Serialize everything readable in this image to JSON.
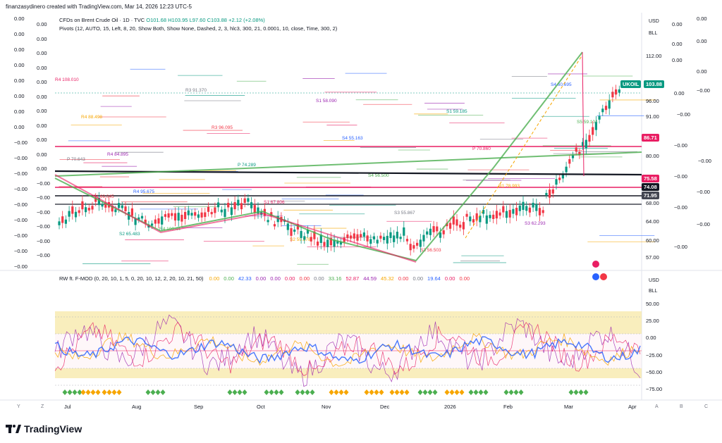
{
  "header": {
    "text": "finanzasydinero created with TradingView.com, Mar 14, 2026 12:23 UTC-5"
  },
  "symbol_info": {
    "title": "CFDs on Brent Crude Oil · 1D · TVC",
    "open": "O101.68",
    "high": "H103.95",
    "low": "L97.60",
    "close": "C103.88",
    "change": "+2.12 (+2.08%)"
  },
  "indicator_info": "Pivots (12, AUTO, 15, Left, 8, 20, Show Both, Show None, Dashed, 2, 3, hlc3, 300, 21, 0.0001, 10, close, Time, 300, 2)",
  "oscillator": {
    "title": "RW ft. F-MOD (0, 20, 10, 1, 5, 0, 20, 10, 12, 2, 20, 10, 21, 50)",
    "values": [
      {
        "v": "0.00",
        "c": "#f7a600"
      },
      {
        "v": "0.00",
        "c": "#4caf50"
      },
      {
        "v": "42.33",
        "c": "#2962ff"
      },
      {
        "v": "0.00",
        "c": "#9c27b0"
      },
      {
        "v": "0.00",
        "c": "#9c27b0"
      },
      {
        "v": "0.00",
        "c": "#e91e63"
      },
      {
        "v": "0.00",
        "c": "#f23645"
      },
      {
        "v": "0.00",
        "c": "#787b86"
      },
      {
        "v": "33.16",
        "c": "#4caf50"
      },
      {
        "v": "52.87",
        "c": "#e91e63"
      },
      {
        "v": "44.59",
        "c": "#9c27b0"
      },
      {
        "v": "45.32",
        "c": "#f7a600"
      },
      {
        "v": "0.00",
        "c": "#f23645"
      },
      {
        "v": "0.00",
        "c": "#787b86"
      },
      {
        "v": "19.64",
        "c": "#2962ff"
      },
      {
        "v": "0.00",
        "c": "#e91e63"
      },
      {
        "v": "0.00",
        "c": "#f23645"
      }
    ]
  },
  "left_scale": [
    "0.00",
    "0.00",
    "0.00",
    "0.00",
    "0.00",
    "0.00",
    "0.00",
    "0.00",
    "−0.00",
    "−0.00",
    "−0.00",
    "−0.00",
    "−0.00",
    "−0.00",
    "−0.00",
    "−0.00",
    "−0.00"
  ],
  "left_scale2": [
    "0.00",
    "0.00",
    "0.00",
    "0.00",
    "0.00",
    "0.00",
    "0.00",
    "0.00",
    "0.00",
    "0.00",
    "0.00",
    "−0.00",
    "−0.00",
    "−0.00",
    "−0.00",
    "−0.00",
    "−0.00"
  ],
  "right_scale": {
    "currency": "USD",
    "unit": "BLL",
    "ticks": [
      "112.00",
      "96.00",
      "91.00",
      "80.00",
      "68.00",
      "64.00",
      "60.00",
      "57.00"
    ],
    "right_extra": [
      "0.00",
      "0.00",
      "0.00",
      "0.00",
      "0.00",
      "0.00",
      "0.00",
      "−0.00",
      "−0.00",
      "−0.00",
      "−0.00",
      "−0.00",
      "−0.00",
      "−0.00",
      "−0.00",
      "−0.00"
    ]
  },
  "price_tags": [
    {
      "label": "UKOIL",
      "value": "103.88",
      "color": "#089981"
    },
    {
      "value": "86.71",
      "color": "#e91e63"
    },
    {
      "value": "75.58",
      "color": "#e91e63"
    },
    {
      "value": "74.08",
      "color": "#131722"
    },
    {
      "value": "71.95",
      "color": "#434651"
    }
  ],
  "osc_scale": {
    "currency": "USD",
    "unit": "BLL",
    "ticks": [
      "50.00",
      "25.00",
      "0.00",
      "−25.00",
      "−50.00",
      "−75.00"
    ]
  },
  "x_axis": [
    "Jul",
    "Aug",
    "Sep",
    "Oct",
    "Nov",
    "Dec",
    "2026",
    "Feb",
    "Mar",
    "Apr"
  ],
  "corner_left": [
    "Y",
    "Z"
  ],
  "corner_right": [
    "A",
    "B",
    "C"
  ],
  "pivot_labels": [
    "R4 108.010",
    "R4 88.498",
    "R4 84.895",
    "R4 95.675",
    "R4 100.44",
    "R3 91.370",
    "R3 96.095",
    "P 74.289",
    "S1 67.806",
    "S2 59.878",
    "S1 58.090",
    "S4 55.163",
    "S4 56.500",
    "S3 55.867",
    "S3 56.503",
    "S1 59.185",
    "P 70.860",
    "R1 78.993",
    "S3 62.293",
    "S4 60.695",
    "S5 59.104",
    "P 70.643",
    "S1 69.045",
    "S2 65.483"
  ],
  "brand": {
    "name": "TradingView"
  }
}
